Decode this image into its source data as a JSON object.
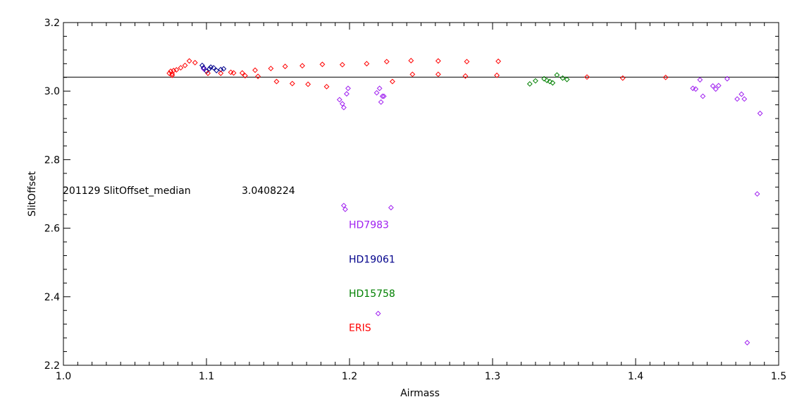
{
  "chart_data": {
    "type": "scatter",
    "xlabel": "Airmass",
    "ylabel": "SlitOffset",
    "xlim": [
      1.0,
      1.5
    ],
    "ylim": [
      2.2,
      3.2
    ],
    "x_ticks": [
      "1.0",
      "1.1",
      "1.2",
      "1.3",
      "1.4",
      "1.5"
    ],
    "y_ticks": [
      "2.2",
      "2.4",
      "2.6",
      "2.8",
      "3.0",
      "3.2"
    ],
    "median_line": 3.0408224,
    "annotation": {
      "text_left": "201129 SlitOffset_median",
      "text_right": "3.0408224"
    },
    "marker": "diamond",
    "series": [
      {
        "name": "HD7983",
        "color": "#a020f0",
        "points": [
          [
            1.193,
            2.975
          ],
          [
            1.195,
            2.963
          ],
          [
            1.196,
            2.952
          ],
          [
            1.198,
            2.992
          ],
          [
            1.199,
            3.008
          ],
          [
            1.196,
            2.666
          ],
          [
            1.197,
            2.655
          ],
          [
            1.219,
            2.995
          ],
          [
            1.221,
            3.008
          ],
          [
            1.222,
            2.968
          ],
          [
            1.223,
            2.985
          ],
          [
            1.224,
            2.985
          ],
          [
            1.229,
            2.66
          ],
          [
            1.22,
            2.351
          ],
          [
            1.44,
            3.008
          ],
          [
            1.442,
            3.006
          ],
          [
            1.445,
            3.033
          ],
          [
            1.447,
            2.985
          ],
          [
            1.454,
            3.015
          ],
          [
            1.456,
            3.006
          ],
          [
            1.458,
            3.016
          ],
          [
            1.464,
            3.036
          ],
          [
            1.471,
            2.977
          ],
          [
            1.474,
            2.991
          ],
          [
            1.476,
            2.977
          ],
          [
            1.487,
            2.935
          ],
          [
            1.485,
            2.7
          ],
          [
            1.478,
            2.266
          ],
          [
            1.098,
            3.065
          ]
        ]
      },
      {
        "name": "HD19061",
        "color": "#00008b",
        "points": [
          [
            1.097,
            3.075
          ],
          [
            1.098,
            3.068
          ],
          [
            1.1,
            3.058
          ],
          [
            1.102,
            3.065
          ],
          [
            1.103,
            3.07
          ],
          [
            1.105,
            3.068
          ],
          [
            1.107,
            3.06
          ],
          [
            1.11,
            3.063
          ],
          [
            1.112,
            3.065
          ]
        ]
      },
      {
        "name": "HD15758",
        "color": "#008000",
        "points": [
          [
            1.326,
            3.021
          ],
          [
            1.33,
            3.03
          ],
          [
            1.336,
            3.036
          ],
          [
            1.338,
            3.031
          ],
          [
            1.34,
            3.028
          ],
          [
            1.342,
            3.024
          ],
          [
            1.345,
            3.047
          ],
          [
            1.349,
            3.038
          ],
          [
            1.352,
            3.034
          ]
        ]
      },
      {
        "name": "ERIS",
        "color": "#ff0000",
        "points": [
          [
            1.074,
            3.052
          ],
          [
            1.075,
            3.058
          ],
          [
            1.076,
            3.046
          ],
          [
            1.076,
            3.05
          ],
          [
            1.077,
            3.06
          ],
          [
            1.079,
            3.062
          ],
          [
            1.082,
            3.068
          ],
          [
            1.085,
            3.075
          ],
          [
            1.088,
            3.088
          ],
          [
            1.092,
            3.083
          ],
          [
            1.101,
            3.052
          ],
          [
            1.11,
            3.052
          ],
          [
            1.117,
            3.055
          ],
          [
            1.119,
            3.053
          ],
          [
            1.125,
            3.053
          ],
          [
            1.127,
            3.045
          ],
          [
            1.134,
            3.061
          ],
          [
            1.136,
            3.043
          ],
          [
            1.145,
            3.066
          ],
          [
            1.149,
            3.028
          ],
          [
            1.155,
            3.072
          ],
          [
            1.16,
            3.022
          ],
          [
            1.167,
            3.074
          ],
          [
            1.171,
            3.02
          ],
          [
            1.181,
            3.078
          ],
          [
            1.184,
            3.013
          ],
          [
            1.195,
            3.077
          ],
          [
            1.212,
            3.08
          ],
          [
            1.226,
            3.086
          ],
          [
            1.23,
            3.028
          ],
          [
            1.243,
            3.089
          ],
          [
            1.244,
            3.049
          ],
          [
            1.262,
            3.088
          ],
          [
            1.262,
            3.049
          ],
          [
            1.281,
            3.044
          ],
          [
            1.282,
            3.086
          ],
          [
            1.303,
            3.046
          ],
          [
            1.304,
            3.087
          ],
          [
            1.366,
            3.041
          ],
          [
            1.391,
            3.038
          ],
          [
            1.421,
            3.04
          ]
        ]
      }
    ],
    "legend": [
      {
        "label": "HD7983",
        "color": "#a020f0",
        "y": 2.61
      },
      {
        "label": "HD19061",
        "color": "#00008b",
        "y": 2.51
      },
      {
        "label": "HD15758",
        "color": "#008000",
        "y": 2.41
      },
      {
        "label": "ERIS",
        "color": "#ff0000",
        "y": 2.31
      }
    ]
  }
}
